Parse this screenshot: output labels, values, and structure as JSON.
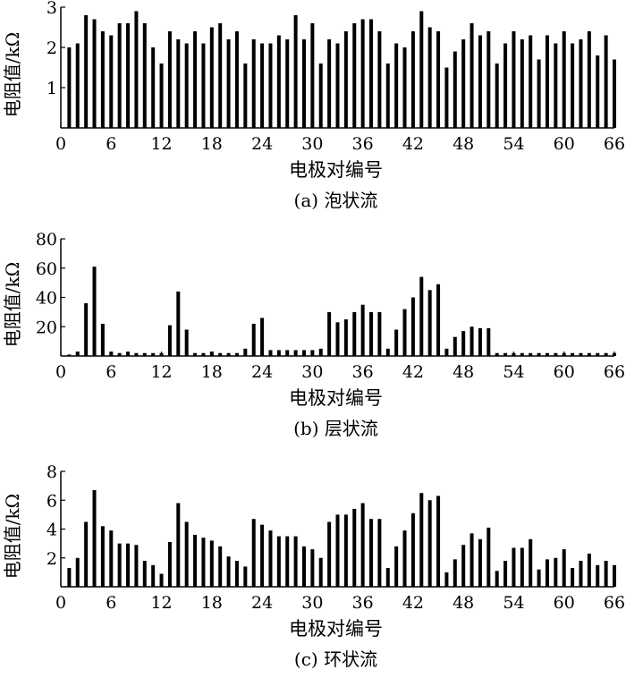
{
  "chart_data": [
    {
      "type": "bar",
      "xlabel": "电极对编号",
      "ylabel": "电阻值/kΩ",
      "caption": "(a) 泡状流",
      "ylim": [
        0,
        3
      ],
      "xlim": [
        0,
        66
      ],
      "xticks": [
        0,
        6,
        12,
        18,
        24,
        30,
        36,
        42,
        48,
        54,
        60,
        66
      ],
      "yticks": [
        1,
        2,
        3
      ],
      "x": [
        1,
        2,
        3,
        4,
        5,
        6,
        7,
        8,
        9,
        10,
        11,
        12,
        13,
        14,
        15,
        16,
        17,
        18,
        19,
        20,
        21,
        22,
        23,
        24,
        25,
        26,
        27,
        28,
        29,
        30,
        31,
        32,
        33,
        34,
        35,
        36,
        37,
        38,
        39,
        40,
        41,
        42,
        43,
        44,
        45,
        46,
        47,
        48,
        49,
        50,
        51,
        52,
        53,
        54,
        55,
        56,
        57,
        58,
        59,
        60,
        61,
        62,
        63,
        64,
        65,
        66
      ],
      "values": [
        2.0,
        2.1,
        2.8,
        2.7,
        2.4,
        2.3,
        2.6,
        2.6,
        2.9,
        2.6,
        2.0,
        1.6,
        2.4,
        2.2,
        2.1,
        2.4,
        2.1,
        2.5,
        2.6,
        2.2,
        2.4,
        1.6,
        2.2,
        2.1,
        2.1,
        2.3,
        2.2,
        2.8,
        2.2,
        2.6,
        1.6,
        2.2,
        2.1,
        2.4,
        2.6,
        2.7,
        2.7,
        2.4,
        1.6,
        2.1,
        2.0,
        2.4,
        2.9,
        2.5,
        2.4,
        1.5,
        1.9,
        2.2,
        2.6,
        2.3,
        2.4,
        1.6,
        2.1,
        2.4,
        2.2,
        2.3,
        1.7,
        2.3,
        2.1,
        2.4,
        2.1,
        2.2,
        2.4,
        1.8,
        2.3,
        1.7
      ]
    },
    {
      "type": "bar",
      "xlabel": "电极对编号",
      "ylabel": "电阻值/kΩ",
      "caption": "(b) 层状流",
      "ylim": [
        0,
        80
      ],
      "xlim": [
        0,
        66
      ],
      "xticks": [
        0,
        6,
        12,
        18,
        24,
        30,
        36,
        42,
        48,
        54,
        60,
        66
      ],
      "yticks": [
        20,
        40,
        60,
        80
      ],
      "x": [
        1,
        2,
        3,
        4,
        5,
        6,
        7,
        8,
        9,
        10,
        11,
        12,
        13,
        14,
        15,
        16,
        17,
        18,
        19,
        20,
        21,
        22,
        23,
        24,
        25,
        26,
        27,
        28,
        29,
        30,
        31,
        32,
        33,
        34,
        35,
        36,
        37,
        38,
        39,
        40,
        41,
        42,
        43,
        44,
        45,
        46,
        47,
        48,
        49,
        50,
        51,
        52,
        53,
        54,
        55,
        56,
        57,
        58,
        59,
        60,
        61,
        62,
        63,
        64,
        65,
        66
      ],
      "values": [
        1,
        3,
        36,
        61,
        22,
        3,
        2,
        3,
        2,
        2,
        2,
        2,
        21,
        44,
        18,
        2,
        2,
        3,
        2,
        2,
        2,
        5,
        22,
        26,
        4,
        4,
        4,
        4,
        4,
        4,
        5,
        30,
        23,
        25,
        30,
        35,
        30,
        30,
        5,
        18,
        32,
        40,
        54,
        45,
        49,
        5,
        13,
        17,
        20,
        19,
        19,
        2,
        2,
        2,
        2,
        2,
        2,
        2,
        2,
        2,
        2,
        2,
        2,
        2,
        2,
        2
      ]
    },
    {
      "type": "bar",
      "xlabel": "电极对编号",
      "ylabel": "电阻值/kΩ",
      "caption": "(c) 环状流",
      "ylim": [
        0,
        8
      ],
      "xlim": [
        0,
        66
      ],
      "xticks": [
        0,
        6,
        12,
        18,
        24,
        30,
        36,
        42,
        48,
        54,
        60,
        66
      ],
      "yticks": [
        2,
        4,
        6,
        8
      ],
      "x": [
        1,
        2,
        3,
        4,
        5,
        6,
        7,
        8,
        9,
        10,
        11,
        12,
        13,
        14,
        15,
        16,
        17,
        18,
        19,
        20,
        21,
        22,
        23,
        24,
        25,
        26,
        27,
        28,
        29,
        30,
        31,
        32,
        33,
        34,
        35,
        36,
        37,
        38,
        39,
        40,
        41,
        42,
        43,
        44,
        45,
        46,
        47,
        48,
        49,
        50,
        51,
        52,
        53,
        54,
        55,
        56,
        57,
        58,
        59,
        60,
        61,
        62,
        63,
        64,
        65,
        66
      ],
      "values": [
        1.3,
        2.0,
        4.5,
        6.7,
        4.2,
        3.9,
        3.0,
        3.0,
        2.9,
        1.8,
        1.5,
        0.9,
        3.1,
        5.8,
        4.5,
        3.6,
        3.4,
        3.2,
        2.8,
        2.1,
        1.8,
        1.4,
        4.7,
        4.3,
        3.9,
        3.5,
        3.5,
        3.5,
        2.8,
        2.6,
        2.0,
        4.5,
        5.0,
        5.0,
        5.4,
        5.8,
        4.7,
        4.7,
        1.3,
        2.8,
        3.9,
        5.1,
        6.5,
        6.0,
        6.3,
        1.0,
        1.9,
        2.9,
        3.7,
        3.3,
        4.1,
        1.1,
        1.8,
        2.7,
        2.7,
        3.3,
        1.2,
        1.9,
        2.0,
        2.6,
        1.3,
        1.8,
        2.3,
        1.5,
        1.8,
        1.5
      ]
    }
  ]
}
